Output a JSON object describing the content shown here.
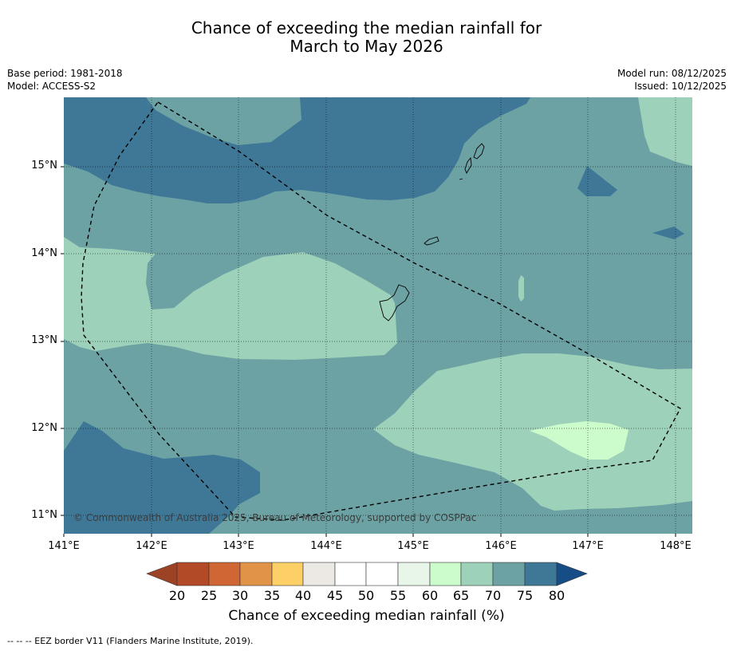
{
  "title_line1": "Chance of exceeding the median rainfall for",
  "title_line2": "March to May 2026",
  "base_period": "Base period: 1981-2018",
  "model": "Model: ACCESS-S2",
  "model_run": "Model run: 08/12/2025",
  "issued": "Issued: 10/12/2025",
  "copyright": "© Commonwealth of Australia 2025, Bureau of Meteorology, supported by COSPPac",
  "footnote": "--  --  -- EEZ border V11 (Flanders Marine Institute, 2019).",
  "colorbar": {
    "label": "Chance of exceeding median rainfall (%)",
    "ticks": [
      "20",
      "25",
      "30",
      "35",
      "40",
      "45",
      "50",
      "55",
      "60",
      "65",
      "70",
      "75",
      "80"
    ],
    "colors": {
      "below20": "#9c4225",
      "20-25": "#b24a28",
      "25-30": "#cf6634",
      "30-35": "#e19448",
      "35-40": "#fdcf67",
      "40-45": "#ece8e3",
      "45-50": "#ffffff",
      "50-55": "#ffffff",
      "55-60": "#e8f5e9",
      "60-65": "#ccfccc",
      "65-70": "#9ed1b9",
      "70-75": "#6ca2a4",
      "75-80": "#3f7897",
      "above80": "#164d86"
    }
  },
  "axes": {
    "lat_ticks": [
      "15°N",
      "14°N",
      "13°N",
      "12°N",
      "11°N"
    ],
    "lon_ticks": [
      "141°E",
      "142°E",
      "143°E",
      "144°E",
      "145°E",
      "146°E",
      "147°E",
      "148°E"
    ]
  }
}
